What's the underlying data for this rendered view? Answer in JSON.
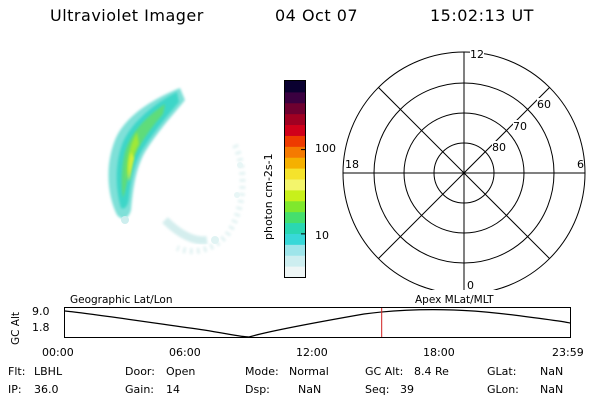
{
  "header": {
    "instrument": "Ultraviolet Imager",
    "date": "04 Oct 07",
    "time": "15:02:13 UT"
  },
  "colorbar": {
    "label": "photon cm-2s-1",
    "ticks": [
      "100",
      "10"
    ],
    "colors": [
      "#eef6f6",
      "#cdeef0",
      "#9ee5ea",
      "#38d8d8",
      "#2ad7b2",
      "#45df6d",
      "#7fe82d",
      "#c8f01b",
      "#f3f56c",
      "#f5e32c",
      "#f5b000",
      "#f57a00",
      "#ee3b00",
      "#d0001a",
      "#a00022",
      "#6e0030",
      "#3a0040",
      "#0a0030"
    ]
  },
  "polar": {
    "mlt_labels": [
      "12",
      "18",
      "6",
      "0"
    ],
    "lat_labels": [
      "60",
      "70",
      "80"
    ]
  },
  "altitude_plot": {
    "ylabel": "GC Alt",
    "yticks": [
      "9.0",
      "1.8"
    ],
    "left_label": "Geographic Lat/Lon",
    "right_label": "Apex MLat/MLT",
    "xticks": [
      "00:00",
      "06:00",
      "12:00",
      "18:00",
      "23:59"
    ],
    "current_time_marker_hours": 15.04
  },
  "status": {
    "row1": [
      {
        "key": "Flt:",
        "value": "LBHL"
      },
      {
        "key": "Door:",
        "value": "Open"
      },
      {
        "key": "Mode:",
        "value": "Normal"
      },
      {
        "key": "GC Alt:",
        "value": "8.4 Re"
      },
      {
        "key": "GLat:",
        "value": "NaN"
      }
    ],
    "row2": [
      {
        "key": "IP:",
        "value": "36.0"
      },
      {
        "key": "Gain:",
        "value": "14"
      },
      {
        "key": "Dsp:",
        "value": "NaN"
      },
      {
        "key": "Seq:",
        "value": "39"
      },
      {
        "key": "GLon:",
        "value": "NaN"
      }
    ]
  }
}
